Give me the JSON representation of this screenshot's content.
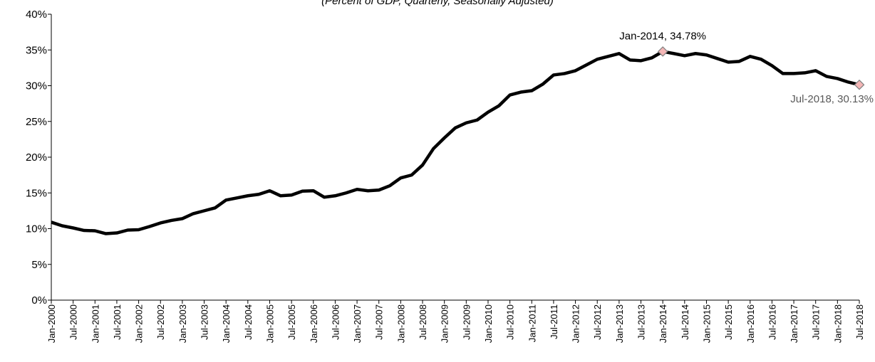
{
  "chart_data": {
    "type": "line",
    "subtitle": "(Percent of GDP, Quarterly, Seasonally Adjusted)",
    "categories": [
      "Jan-2000",
      null,
      "Jul-2000",
      null,
      "Jan-2001",
      null,
      "Jul-2001",
      null,
      "Jan-2002",
      null,
      "Jul-2002",
      null,
      "Jan-2003",
      null,
      "Jul-2003",
      null,
      "Jan-2004",
      null,
      "Jul-2004",
      null,
      "Jan-2005",
      null,
      "Jul-2005",
      null,
      "Jan-2006",
      null,
      "Jul-2006",
      null,
      "Jan-2007",
      null,
      "Jul-2007",
      null,
      "Jan-2008",
      null,
      "Jul-2008",
      null,
      "Jan-2009",
      null,
      "Jul-2009",
      null,
      "Jan-2010",
      null,
      "Jul-2010",
      null,
      "Jan-2011",
      null,
      "Jul-2011",
      null,
      "Jan-2012",
      null,
      "Jul-2012",
      null,
      "Jan-2013",
      null,
      "Jul-2013",
      null,
      "Jan-2014",
      null,
      "Jul-2014",
      null,
      "Jan-2015",
      null,
      "Jul-2015",
      null,
      "Jan-2016",
      null,
      "Jul-2016",
      null,
      "Jan-2017",
      null,
      "Jul-2017",
      null,
      "Jan-2018",
      null,
      "Jul-2018"
    ],
    "values": [
      10.9,
      10.4,
      10.1,
      9.75,
      9.7,
      9.3,
      9.4,
      9.8,
      9.85,
      10.3,
      10.8,
      11.15,
      11.4,
      12.1,
      12.5,
      12.9,
      14.0,
      14.3,
      14.6,
      14.8,
      15.3,
      14.6,
      14.7,
      15.25,
      15.3,
      14.4,
      14.6,
      15.0,
      15.5,
      15.3,
      15.4,
      16.0,
      17.1,
      17.5,
      18.9,
      21.2,
      22.7,
      24.1,
      24.8,
      25.2,
      26.3,
      27.2,
      28.7,
      29.1,
      29.3,
      30.2,
      31.5,
      31.7,
      32.1,
      32.9,
      33.7,
      34.1,
      34.5,
      33.6,
      33.5,
      33.9,
      34.78,
      34.5,
      34.2,
      34.5,
      34.3,
      33.8,
      33.3,
      33.4,
      34.1,
      33.7,
      32.8,
      31.7,
      31.7,
      31.8,
      32.1,
      31.3,
      31.0,
      30.5,
      30.13
    ],
    "color": "#000000",
    "marker_color": "#f4b6b6",
    "ylim": [
      0,
      40
    ],
    "yticks": [
      {
        "value": 0,
        "label": "0%"
      },
      {
        "value": 5,
        "label": "5%"
      },
      {
        "value": 10,
        "label": "10%"
      },
      {
        "value": 15,
        "label": "15%"
      },
      {
        "value": 20,
        "label": "20%"
      },
      {
        "value": 25,
        "label": "25%"
      },
      {
        "value": 30,
        "label": "30%"
      },
      {
        "value": 35,
        "label": "35%"
      },
      {
        "value": 40,
        "label": "40%"
      }
    ],
    "grid": false,
    "annotations": [
      {
        "text": "Jan-2014, 34.78%",
        "x": "Jan-2014",
        "y": 34.78
      },
      {
        "text": "Jul-2018, 30.13%",
        "x": "Jul-2018",
        "y": 30.13
      }
    ]
  }
}
